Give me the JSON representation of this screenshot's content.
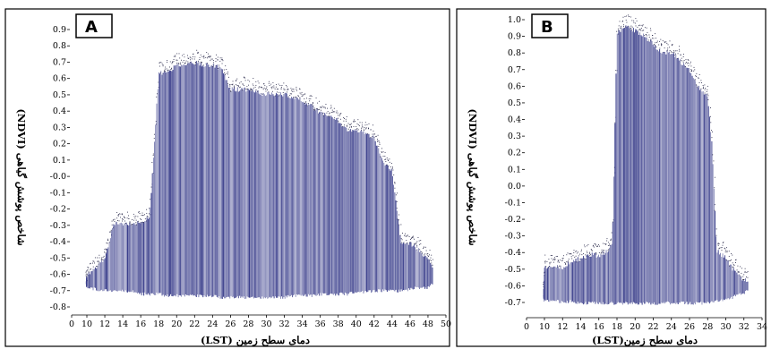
{
  "chart_data": [
    {
      "type": "scatter",
      "panel_label": "A",
      "xlabel": "دمای سطح زمین (LST)",
      "ylabel": "شاخص پوشش گیاهی (NDVI)",
      "xlim": [
        0,
        50
      ],
      "ylim": [
        -0.85,
        0.95
      ],
      "x_ticks": [
        "0",
        "10",
        "12",
        "14",
        "16",
        "18",
        "20",
        "22",
        "24",
        "26",
        "28",
        "30",
        "32",
        "34",
        "36",
        "38",
        "40",
        "42",
        "44",
        "46",
        "48",
        "50"
      ],
      "y_ticks": [
        "0.9",
        "0.8",
        "0.7",
        "0.6",
        "0.5",
        "0.4",
        "0.3",
        "0.2",
        "0.1",
        "-0.0",
        "-0.1",
        "-0.2",
        "-0.3",
        "-0.4",
        "-0.5",
        "-0.6",
        "-0.7",
        "-0.8"
      ],
      "color": "#3b3f8c",
      "envelope": {
        "x": [
          9.5,
          10,
          11,
          12,
          13,
          14,
          15,
          16,
          17,
          18,
          19,
          20,
          21,
          22,
          23,
          24,
          25,
          26,
          27,
          28,
          29,
          30,
          31,
          32,
          33,
          34,
          35,
          36,
          37,
          38,
          39,
          40,
          41,
          42,
          43,
          44,
          45,
          46,
          47,
          48,
          48.5
        ],
        "y_max": [
          -0.64,
          -0.6,
          -0.55,
          -0.5,
          -0.28,
          -0.28,
          -0.28,
          -0.27,
          -0.25,
          0.65,
          0.66,
          0.7,
          0.7,
          0.72,
          0.7,
          0.7,
          0.68,
          0.55,
          0.55,
          0.55,
          0.53,
          0.52,
          0.52,
          0.52,
          0.5,
          0.48,
          0.45,
          0.4,
          0.38,
          0.36,
          0.3,
          0.3,
          0.28,
          0.25,
          0.1,
          0.05,
          -0.4,
          -0.4,
          -0.45,
          -0.5,
          -0.55
        ],
        "y_min": [
          -0.66,
          -0.68,
          -0.69,
          -0.7,
          -0.7,
          -0.7,
          -0.7,
          -0.72,
          -0.72,
          -0.72,
          -0.73,
          -0.73,
          -0.73,
          -0.73,
          -0.73,
          -0.73,
          -0.74,
          -0.74,
          -0.74,
          -0.74,
          -0.74,
          -0.74,
          -0.74,
          -0.74,
          -0.73,
          -0.73,
          -0.73,
          -0.72,
          -0.72,
          -0.72,
          -0.72,
          -0.71,
          -0.71,
          -0.7,
          -0.7,
          -0.7,
          -0.7,
          -0.69,
          -0.68,
          -0.68,
          -0.66
        ]
      }
    },
    {
      "type": "scatter",
      "panel_label": "B",
      "xlabel": "دمای سطح زمین(LST)",
      "ylabel": "شاخص پوشش گیاهی (NDVI)",
      "xlim": [
        0,
        34
      ],
      "ylim": [
        -0.75,
        1.05
      ],
      "x_ticks": [
        "0",
        "10",
        "12",
        "14",
        "16",
        "18",
        "20",
        "22",
        "24",
        "26",
        "28",
        "30",
        "32",
        "34"
      ],
      "y_ticks": [
        "1.0",
        "0.9",
        "0.8",
        "0.7",
        "0.6",
        "0.5",
        "0.4",
        "0.3",
        "0.2",
        "0.1",
        "0.0",
        "-0.1",
        "-0.2",
        "-0.3",
        "-0.4",
        "-0.5",
        "-0.6",
        "-0.7"
      ],
      "color": "#3b3f8c",
      "envelope": {
        "x": [
          9.5,
          10,
          11,
          12,
          13,
          14,
          15,
          16,
          17,
          17.5,
          18,
          18.5,
          19,
          20,
          21,
          22,
          23,
          24,
          25,
          26,
          27,
          28,
          28.5,
          29,
          30,
          31,
          32,
          32.5
        ],
        "y_max": [
          -0.6,
          -0.45,
          -0.45,
          -0.45,
          -0.42,
          -0.4,
          -0.38,
          -0.38,
          -0.36,
          -0.3,
          0.92,
          0.93,
          0.95,
          0.93,
          0.9,
          0.85,
          0.8,
          0.8,
          0.75,
          0.7,
          0.6,
          0.55,
          0.25,
          -0.35,
          -0.4,
          -0.48,
          -0.52,
          -0.55
        ],
        "y_min": [
          -0.62,
          -0.65,
          -0.65,
          -0.65,
          -0.65,
          -0.66,
          -0.66,
          -0.66,
          -0.66,
          -0.66,
          -0.66,
          -0.66,
          -0.66,
          -0.66,
          -0.66,
          -0.66,
          -0.66,
          -0.66,
          -0.66,
          -0.66,
          -0.66,
          -0.66,
          -0.65,
          -0.65,
          -0.64,
          -0.62,
          -0.6,
          -0.58
        ]
      }
    }
  ]
}
